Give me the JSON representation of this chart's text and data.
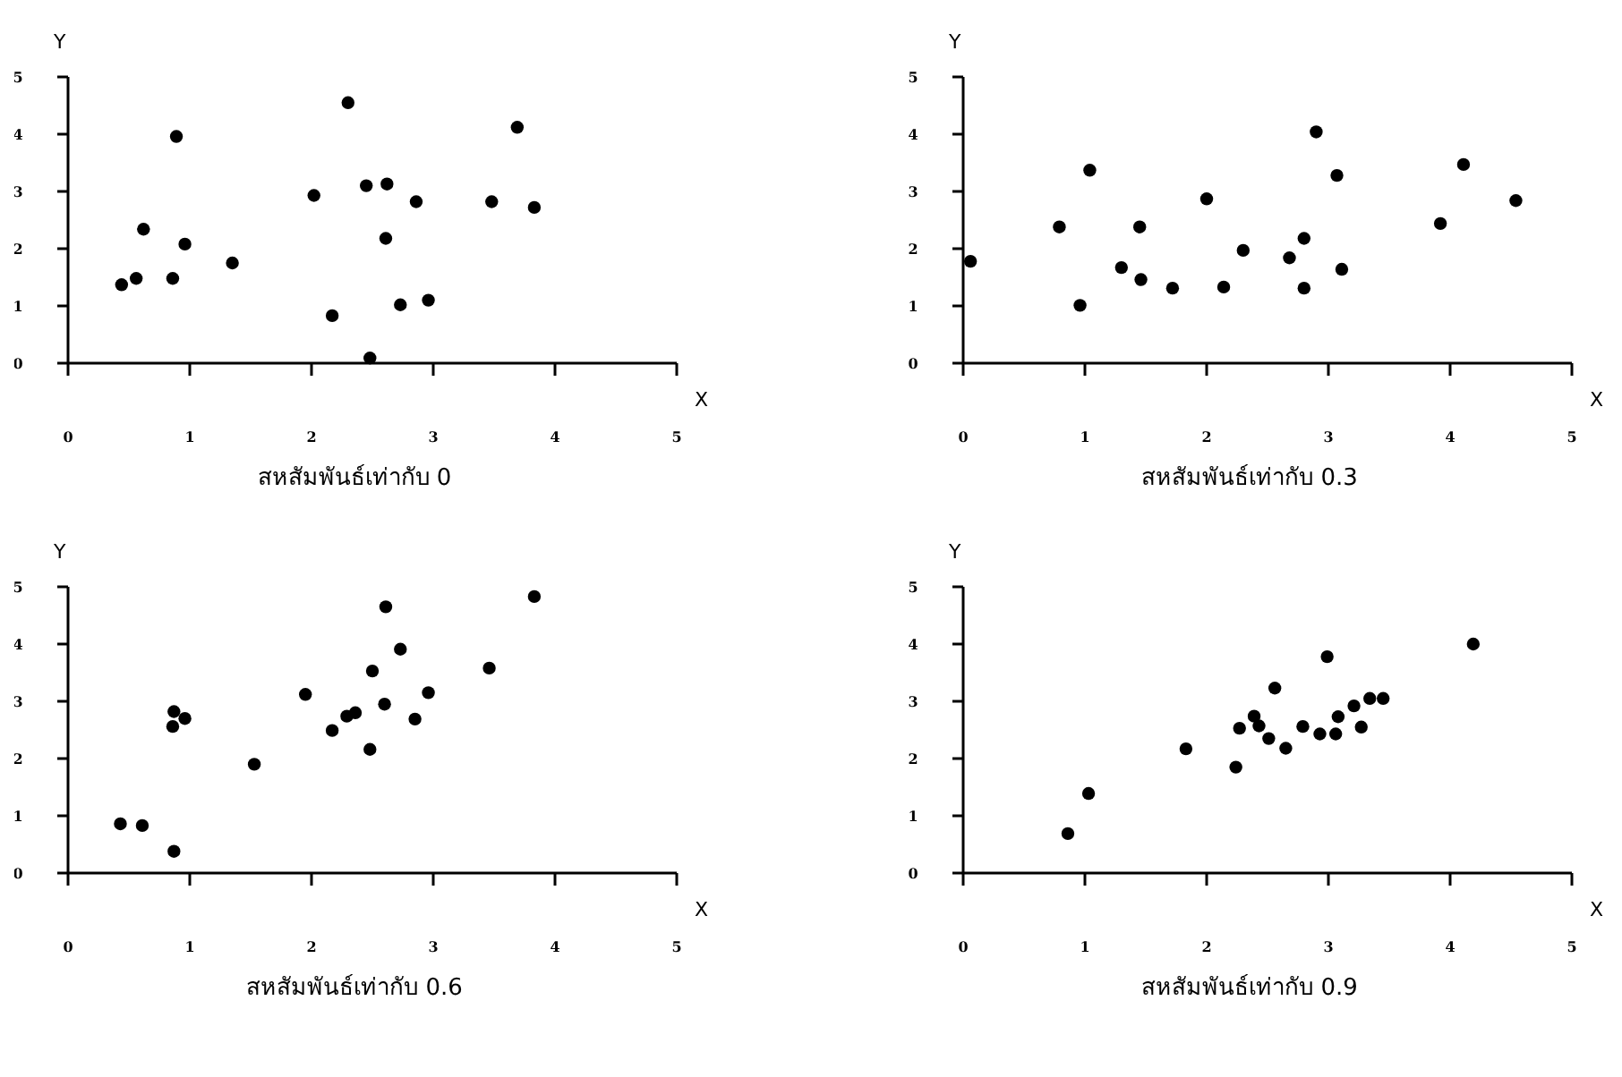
{
  "chart_data": [
    {
      "type": "scatter",
      "title": "สหสัมพันธ์เท่ากับ 0",
      "xlabel": "X",
      "ylabel": "Y",
      "marker": "circle",
      "grid": false,
      "xlim": [
        0,
        5
      ],
      "ylim": [
        0,
        5
      ],
      "xticks": [
        0,
        1,
        2,
        3,
        4,
        5
      ],
      "yticks": [
        0,
        1,
        2,
        3,
        4,
        5
      ],
      "series": [
        {
          "color": "#000000",
          "x": [
            0.44,
            0.56,
            0.62,
            0.86,
            0.89,
            0.96,
            1.35,
            2.02,
            2.17,
            2.3,
            2.45,
            2.48,
            2.62,
            2.61,
            2.73,
            2.86,
            2.96,
            3.48,
            3.69,
            3.83
          ],
          "values": [
            1.37,
            1.48,
            2.34,
            1.48,
            3.96,
            2.08,
            1.75,
            2.93,
            0.83,
            4.55,
            3.1,
            0.09,
            3.13,
            2.18,
            1.02,
            2.82,
            1.1,
            2.82,
            4.12,
            2.72
          ]
        }
      ]
    },
    {
      "type": "scatter",
      "title": "สหสัมพันธ์เท่ากับ 0.3",
      "xlabel": "X",
      "ylabel": "Y",
      "marker": "circle",
      "grid": false,
      "xlim": [
        0,
        5
      ],
      "ylim": [
        0,
        5
      ],
      "xticks": [
        0,
        1,
        2,
        3,
        4,
        5
      ],
      "yticks": [
        0,
        1,
        2,
        3,
        4,
        5
      ],
      "series": [
        {
          "color": "#000000",
          "x": [
            0.06,
            0.79,
            0.96,
            1.04,
            1.3,
            1.45,
            1.46,
            1.72,
            2.0,
            2.14,
            2.3,
            2.68,
            2.8,
            2.8,
            2.9,
            3.07,
            3.11,
            3.92,
            4.11,
            4.54
          ],
          "values": [
            1.78,
            2.38,
            1.01,
            3.37,
            1.67,
            2.38,
            1.46,
            1.31,
            2.87,
            1.33,
            1.97,
            1.84,
            2.18,
            1.31,
            4.04,
            3.28,
            1.64,
            2.44,
            3.47,
            2.84
          ]
        }
      ]
    },
    {
      "type": "scatter",
      "title": "สหสัมพันธ์เท่ากับ 0.6",
      "xlabel": "X",
      "ylabel": "Y",
      "marker": "circle",
      "grid": false,
      "xlim": [
        0,
        5
      ],
      "ylim": [
        0,
        5
      ],
      "xticks": [
        0,
        1,
        2,
        3,
        4,
        5
      ],
      "yticks": [
        0,
        1,
        2,
        3,
        4,
        5
      ],
      "series": [
        {
          "color": "#000000",
          "x": [
            0.43,
            0.61,
            0.87,
            0.87,
            0.86,
            0.96,
            1.53,
            1.95,
            2.17,
            2.29,
            2.36,
            2.48,
            2.5,
            2.6,
            2.61,
            2.73,
            2.85,
            2.96,
            3.46,
            3.83
          ],
          "values": [
            0.86,
            0.83,
            0.38,
            2.82,
            2.56,
            2.7,
            1.9,
            3.12,
            2.49,
            2.74,
            2.8,
            2.16,
            3.53,
            2.95,
            4.65,
            3.91,
            2.69,
            3.15,
            3.58,
            4.83
          ]
        }
      ]
    },
    {
      "type": "scatter",
      "title": "สหสัมพันธ์เท่ากับ 0.9",
      "xlabel": "X",
      "ylabel": "Y",
      "marker": "circle",
      "grid": false,
      "xlim": [
        0,
        5
      ],
      "ylim": [
        0,
        5
      ],
      "xticks": [
        0,
        1,
        2,
        3,
        4,
        5
      ],
      "yticks": [
        0,
        1,
        2,
        3,
        4,
        5
      ],
      "series": [
        {
          "color": "#000000",
          "x": [
            0.86,
            1.03,
            1.83,
            2.24,
            2.27,
            2.39,
            2.43,
            2.51,
            2.56,
            2.65,
            2.79,
            2.93,
            2.99,
            3.06,
            3.08,
            3.21,
            3.27,
            3.34,
            3.45,
            4.19
          ],
          "values": [
            0.69,
            1.39,
            2.17,
            1.85,
            2.53,
            2.74,
            2.57,
            2.35,
            3.23,
            2.18,
            2.56,
            2.43,
            3.78,
            2.43,
            2.73,
            2.92,
            2.55,
            3.05,
            3.05,
            4.0
          ]
        }
      ]
    }
  ]
}
